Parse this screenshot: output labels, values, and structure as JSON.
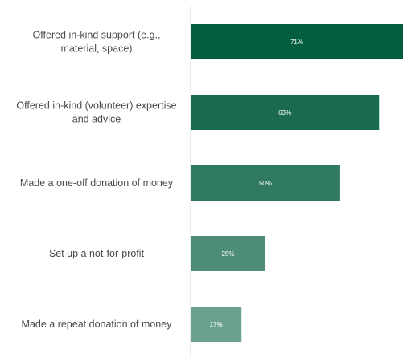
{
  "chart_data": {
    "type": "bar",
    "orientation": "horizontal",
    "categories": [
      "Offered in-kind support (e.g., material, space)",
      "Offered in-kind (volunteer) expertise and advice",
      "Made a one-off donation of money",
      "Set up a not-for-profit",
      "Made a repeat donation of money"
    ],
    "category_lines": [
      [
        "Offered in-kind support (e.g.,",
        "material, space)"
      ],
      [
        "Offered in-kind (volunteer) expertise",
        "and advice"
      ],
      [
        "Made a one-off donation of money"
      ],
      [
        "Set up a not-for-profit"
      ],
      [
        "Made a repeat donation of money"
      ]
    ],
    "values": [
      71,
      63,
      50,
      25,
      17
    ],
    "value_labels": [
      "71%",
      "63%",
      "50%",
      "25%",
      "17%"
    ],
    "value_unit": "%",
    "xlim": [
      0,
      71
    ],
    "bar_colors": [
      "#035e40",
      "#1a6a4f",
      "#317a62",
      "#4d8d78",
      "#69a08e"
    ],
    "axis_color": "#d9d9d9",
    "label_color": "#4a4a4a",
    "title": "",
    "xlabel": "",
    "ylabel": "",
    "grid": false,
    "legend": "none"
  }
}
